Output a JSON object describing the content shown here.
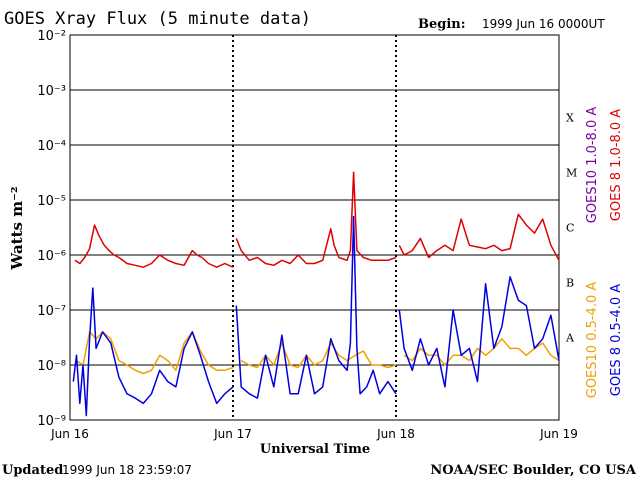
{
  "header": {
    "title": "GOES Xray Flux (5 minute data)",
    "begin_label": "Begin:",
    "begin_value": "1999 Jun 16 0000UT"
  },
  "footer": {
    "updated_label": "Updated",
    "updated_value": "1999 Jun 18 23:59:07",
    "credit": "NOAA/SEC Boulder, CO USA"
  },
  "colors": {
    "goes8_long": "#e00000",
    "goes10_long": "#7a00a0",
    "goes8_short": "#0000e0",
    "goes10_short": "#f0a000",
    "axis": "#000000"
  },
  "chart_data": {
    "type": "line",
    "title": "GOES Xray Flux (5 minute data)",
    "xlabel": "Universal Time",
    "ylabel": "Watts m⁻²",
    "y_scale": "log",
    "ylim": [
      1e-09,
      0.01
    ],
    "xlim_days": [
      0,
      3
    ],
    "x_ticks": [
      "Jun 16",
      "Jun 17",
      "Jun 18",
      "Jun 19"
    ],
    "y_ticks": [
      "10⁻⁹",
      "10⁻⁸",
      "10⁻⁷",
      "10⁻⁶",
      "10⁻⁵",
      "10⁻⁴",
      "10⁻³",
      "10⁻²"
    ],
    "flare_classes": [
      {
        "label": "X",
        "level": 0.0001
      },
      {
        "label": "M",
        "level": 1e-05
      },
      {
        "label": "C",
        "level": 1e-06
      },
      {
        "label": "B",
        "level": 1e-07
      },
      {
        "label": "A",
        "level": 1e-08
      }
    ],
    "grid": true,
    "data_gaps_days": [
      1.0,
      2.0
    ],
    "series": [
      {
        "name": "GOES 8 1.0-8.0 A",
        "color_key": "goes8_long",
        "x": [
          0,
          0.03,
          0.06,
          0.09,
          0.12,
          0.15,
          0.18,
          0.21,
          0.24,
          0.27,
          0.3,
          0.35,
          0.4,
          0.45,
          0.5,
          0.55,
          0.6,
          0.65,
          0.7,
          0.75,
          0.78,
          0.81,
          0.85,
          0.9,
          0.95,
          1.0,
          1.02,
          1.05,
          1.1,
          1.15,
          1.2,
          1.25,
          1.3,
          1.35,
          1.4,
          1.45,
          1.5,
          1.55,
          1.6,
          1.62,
          1.65,
          1.7,
          1.72,
          1.74,
          1.76,
          1.8,
          1.85,
          1.9,
          1.95,
          2.0,
          2.02,
          2.05,
          2.1,
          2.15,
          2.2,
          2.25,
          2.3,
          2.35,
          2.4,
          2.45,
          2.5,
          2.55,
          2.6,
          2.65,
          2.7,
          2.75,
          2.8,
          2.85,
          2.9,
          2.95,
          3.0
        ],
        "y": [
          6e-07,
          8e-07,
          7e-07,
          9e-07,
          1.3e-06,
          3.5e-06,
          2.2e-06,
          1.5e-06,
          1.2e-06,
          1e-06,
          9e-07,
          7e-07,
          6.5e-07,
          6e-07,
          7e-07,
          1e-06,
          8e-07,
          7e-07,
          6.5e-07,
          1.2e-06,
          1e-06,
          9e-07,
          7e-07,
          6e-07,
          7e-07,
          6e-07,
          2e-06,
          1.2e-06,
          8e-07,
          9e-07,
          7e-07,
          6.5e-07,
          8e-07,
          7e-07,
          1e-06,
          7e-07,
          7e-07,
          8e-07,
          3e-06,
          1.5e-06,
          9e-07,
          8e-07,
          1.2e-06,
          3.2e-05,
          1.2e-06,
          9e-07,
          8e-07,
          8e-07,
          8e-07,
          9e-07,
          1.5e-06,
          1e-06,
          1.2e-06,
          2e-06,
          9e-07,
          1.2e-06,
          1.5e-06,
          1.2e-06,
          4.5e-06,
          1.5e-06,
          1.4e-06,
          1.3e-06,
          1.5e-06,
          1.2e-06,
          1.3e-06,
          5.5e-06,
          3.5e-06,
          2.5e-06,
          4.5e-06,
          1.5e-06,
          8e-07
        ]
      },
      {
        "name": "GOES10 1.0-8.0 A",
        "color_key": "goes10_long",
        "x": [],
        "y": []
      },
      {
        "name": "GOES 8 0.5-4.0 A",
        "color_key": "goes8_short",
        "x": [
          0,
          0.02,
          0.04,
          0.06,
          0.08,
          0.1,
          0.12,
          0.14,
          0.16,
          0.2,
          0.25,
          0.3,
          0.35,
          0.4,
          0.45,
          0.5,
          0.55,
          0.6,
          0.65,
          0.7,
          0.75,
          0.8,
          0.85,
          0.9,
          0.95,
          1.0,
          1.02,
          1.05,
          1.1,
          1.15,
          1.2,
          1.25,
          1.3,
          1.35,
          1.4,
          1.45,
          1.5,
          1.55,
          1.6,
          1.65,
          1.7,
          1.72,
          1.74,
          1.76,
          1.78,
          1.82,
          1.86,
          1.9,
          1.95,
          2.0,
          2.02,
          2.05,
          2.1,
          2.15,
          2.2,
          2.25,
          2.3,
          2.35,
          2.4,
          2.45,
          2.5,
          2.55,
          2.6,
          2.65,
          2.7,
          2.75,
          2.8,
          2.85,
          2.9,
          2.95,
          3.0
        ],
        "y": [
          3e-09,
          5e-09,
          1.5e-08,
          2e-09,
          1e-08,
          1.2e-09,
          3e-08,
          2.5e-07,
          2e-08,
          4e-08,
          2.5e-08,
          6e-09,
          3e-09,
          2.5e-09,
          2e-09,
          3e-09,
          8e-09,
          5e-09,
          4e-09,
          2e-08,
          4e-08,
          1.5e-08,
          5e-09,
          2e-09,
          3e-09,
          4e-09,
          1.2e-07,
          4e-09,
          3e-09,
          2.5e-09,
          1.5e-08,
          4e-09,
          3.5e-08,
          3e-09,
          3e-09,
          1.5e-08,
          3e-09,
          4e-09,
          3e-08,
          1.2e-08,
          8e-09,
          2.5e-08,
          5e-06,
          2e-08,
          3e-09,
          4e-09,
          8e-09,
          3e-09,
          5e-09,
          3e-09,
          1e-07,
          2e-08,
          8e-09,
          3e-08,
          1e-08,
          2e-08,
          4e-09,
          1e-07,
          1.5e-08,
          2e-08,
          5e-09,
          3e-07,
          2e-08,
          5e-08,
          4e-07,
          1.5e-07,
          1.2e-07,
          2e-08,
          3e-08,
          8e-08,
          1.2e-08
        ]
      },
      {
        "name": "GOES10 0.5-4.0 A",
        "color_key": "goes10_short",
        "x": [
          0,
          0.04,
          0.08,
          0.12,
          0.16,
          0.2,
          0.25,
          0.3,
          0.35,
          0.4,
          0.45,
          0.5,
          0.55,
          0.6,
          0.65,
          0.7,
          0.75,
          0.8,
          0.85,
          0.9,
          0.95,
          1.0,
          1.05,
          1.1,
          1.15,
          1.2,
          1.25,
          1.3,
          1.35,
          1.4,
          1.45,
          1.5,
          1.55,
          1.6,
          1.65,
          1.7,
          1.75,
          1.8,
          1.85,
          1.9,
          1.95,
          2.0,
          2.05,
          2.1,
          2.15,
          2.2,
          2.25,
          2.3,
          2.35,
          2.4,
          2.45,
          2.5,
          2.55,
          2.6,
          2.65,
          2.7,
          2.75,
          2.8,
          2.85,
          2.9,
          2.95,
          3.0
        ],
        "y": [
          8e-09,
          1.2e-08,
          1e-08,
          4e-08,
          3e-08,
          4e-08,
          3e-08,
          1.2e-08,
          1e-08,
          8e-09,
          7e-09,
          8e-09,
          1.5e-08,
          1.2e-08,
          8e-09,
          2.5e-08,
          4e-08,
          1.8e-08,
          1e-08,
          8e-09,
          8e-09,
          9e-09,
          1.2e-08,
          1e-08,
          9e-09,
          1.5e-08,
          1e-08,
          2.5e-08,
          1e-08,
          9e-09,
          1.5e-08,
          1e-08,
          1.2e-08,
          2.5e-08,
          1.5e-08,
          1.2e-08,
          1.5e-08,
          1.8e-08,
          1e-08,
          1e-08,
          9e-09,
          1e-08,
          1.5e-08,
          1.2e-08,
          2e-08,
          1.5e-08,
          1.5e-08,
          1e-08,
          1.5e-08,
          1.5e-08,
          1.2e-08,
          2e-08,
          1.5e-08,
          2e-08,
          3e-08,
          2e-08,
          2e-08,
          1.5e-08,
          2e-08,
          2.5e-08,
          1.5e-08,
          1.2e-08
        ]
      }
    ]
  }
}
